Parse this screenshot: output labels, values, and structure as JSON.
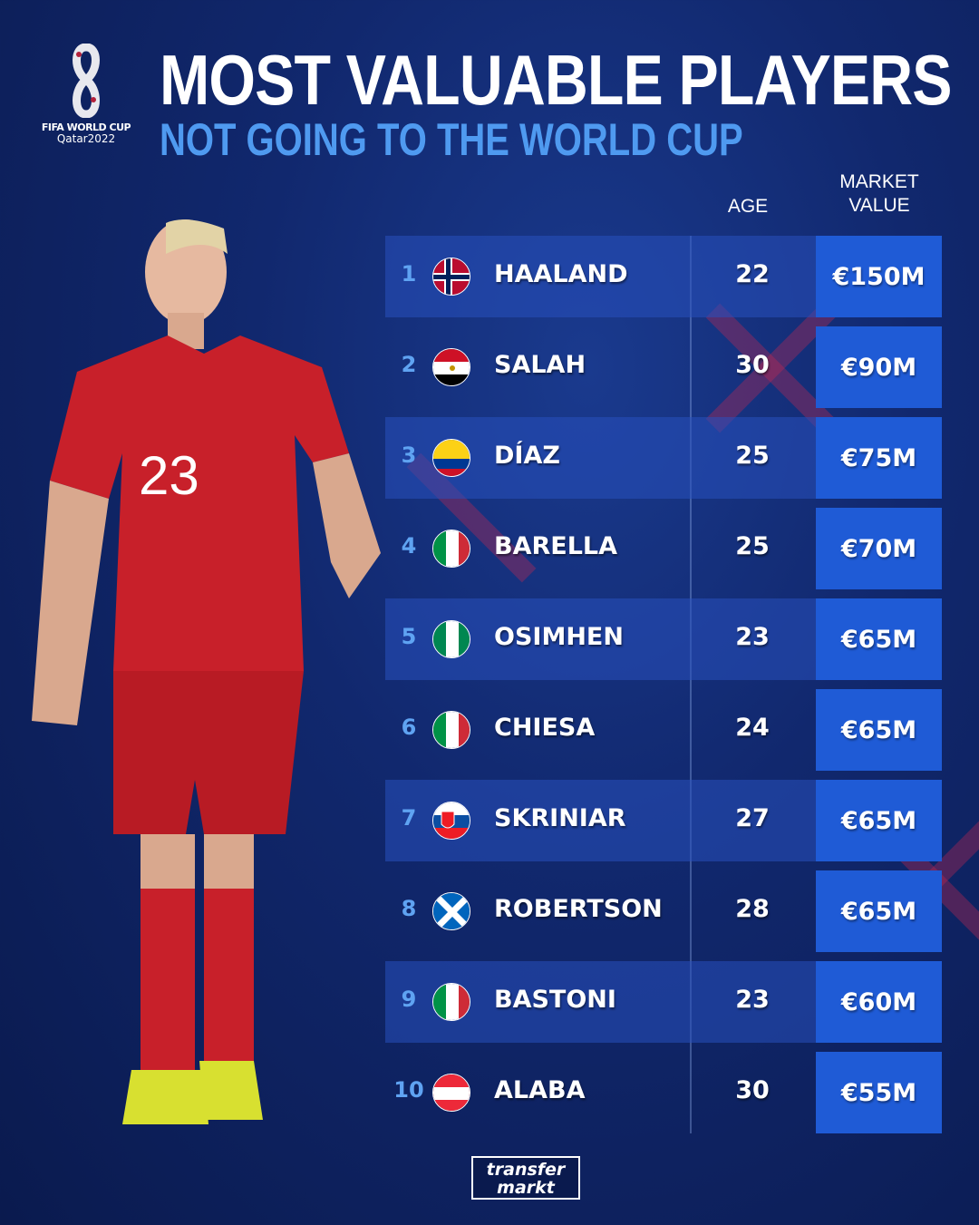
{
  "logo": {
    "line1": "FIFA WORLD CUP",
    "line2": "Qatar2022"
  },
  "title": "MOST VALUABLE PLAYERS",
  "subtitle": "NOT GOING TO THE WORLD CUP",
  "headers": {
    "age": "AGE",
    "market_value_1": "MARKET",
    "market_value_2": "VALUE"
  },
  "rows": [
    {
      "rank": "1",
      "flag": "norway-flag",
      "name": "HAALAND",
      "age": "22",
      "value": "€150M"
    },
    {
      "rank": "2",
      "flag": "egypt-flag",
      "name": "SALAH",
      "age": "30",
      "value": "€90M"
    },
    {
      "rank": "3",
      "flag": "colombia-flag",
      "name": "DÍAZ",
      "age": "25",
      "value": "€75M"
    },
    {
      "rank": "4",
      "flag": "italy-flag",
      "name": "BARELLA",
      "age": "25",
      "value": "€70M"
    },
    {
      "rank": "5",
      "flag": "nigeria-flag",
      "name": "OSIMHEN",
      "age": "23",
      "value": "€65M"
    },
    {
      "rank": "6",
      "flag": "italy-flag",
      "name": "CHIESA",
      "age": "24",
      "value": "€65M"
    },
    {
      "rank": "7",
      "flag": "slovakia-flag",
      "name": "SKRINIAR",
      "age": "27",
      "value": "€65M"
    },
    {
      "rank": "8",
      "flag": "scotland-flag",
      "name": "ROBERTSON",
      "age": "28",
      "value": "€65M"
    },
    {
      "rank": "9",
      "flag": "italy-flag",
      "name": "BASTONI",
      "age": "23",
      "value": "€60M"
    },
    {
      "rank": "10",
      "flag": "austria-flag",
      "name": "ALABA",
      "age": "30",
      "value": "€55M"
    }
  ],
  "player_jersey": {
    "number": "23"
  },
  "footer": {
    "brand_line1": "transfer",
    "brand_line2": "markt"
  },
  "colors": {
    "background": "#11286e",
    "value_cell": "#1f5bd6",
    "accent_blue": "#4f9af0",
    "jersey_red": "#c8202a"
  }
}
